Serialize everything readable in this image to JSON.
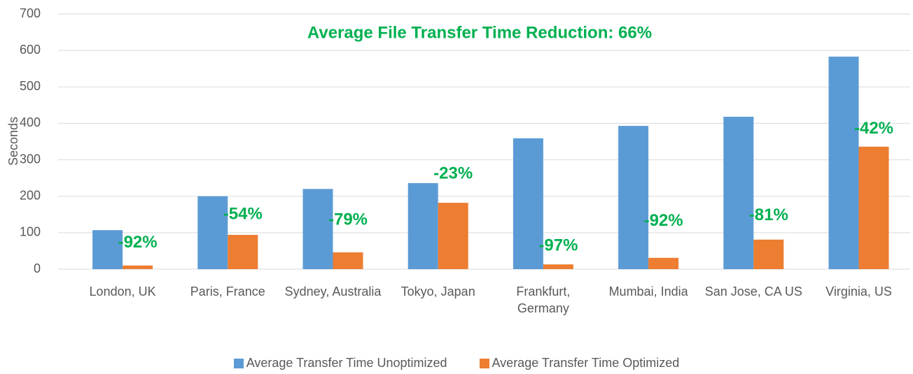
{
  "chart_data": {
    "type": "bar",
    "title": "Average File Transfer Time Reduction: 66%",
    "y_label": "Seconds",
    "categories": [
      "London, UK",
      "Paris, France",
      "Sydney, Australia",
      "Tokyo, Japan",
      "Frankfurt, Germany",
      "Mumbai, India",
      "San Jose, CA US",
      "Virginia, US"
    ],
    "series": [
      {
        "name": "Average Transfer Time Unoptimized",
        "color": "#5b9bd5",
        "values": [
          107,
          200,
          220,
          236,
          359,
          393,
          418,
          583
        ]
      },
      {
        "name": "Average Transfer Time Optimized",
        "color": "#ed7d31",
        "values": [
          10,
          94,
          46,
          182,
          13,
          31,
          81,
          336
        ]
      }
    ],
    "annotations": [
      "-92%",
      "-54%",
      "-79%",
      "-23%",
      "-97%",
      "-92%",
      "-81%",
      "-42%"
    ],
    "ylim": [
      0,
      700
    ],
    "yticks": [
      0,
      100,
      200,
      300,
      400,
      500,
      600,
      700
    ],
    "grid": true,
    "legend": "bottom"
  }
}
